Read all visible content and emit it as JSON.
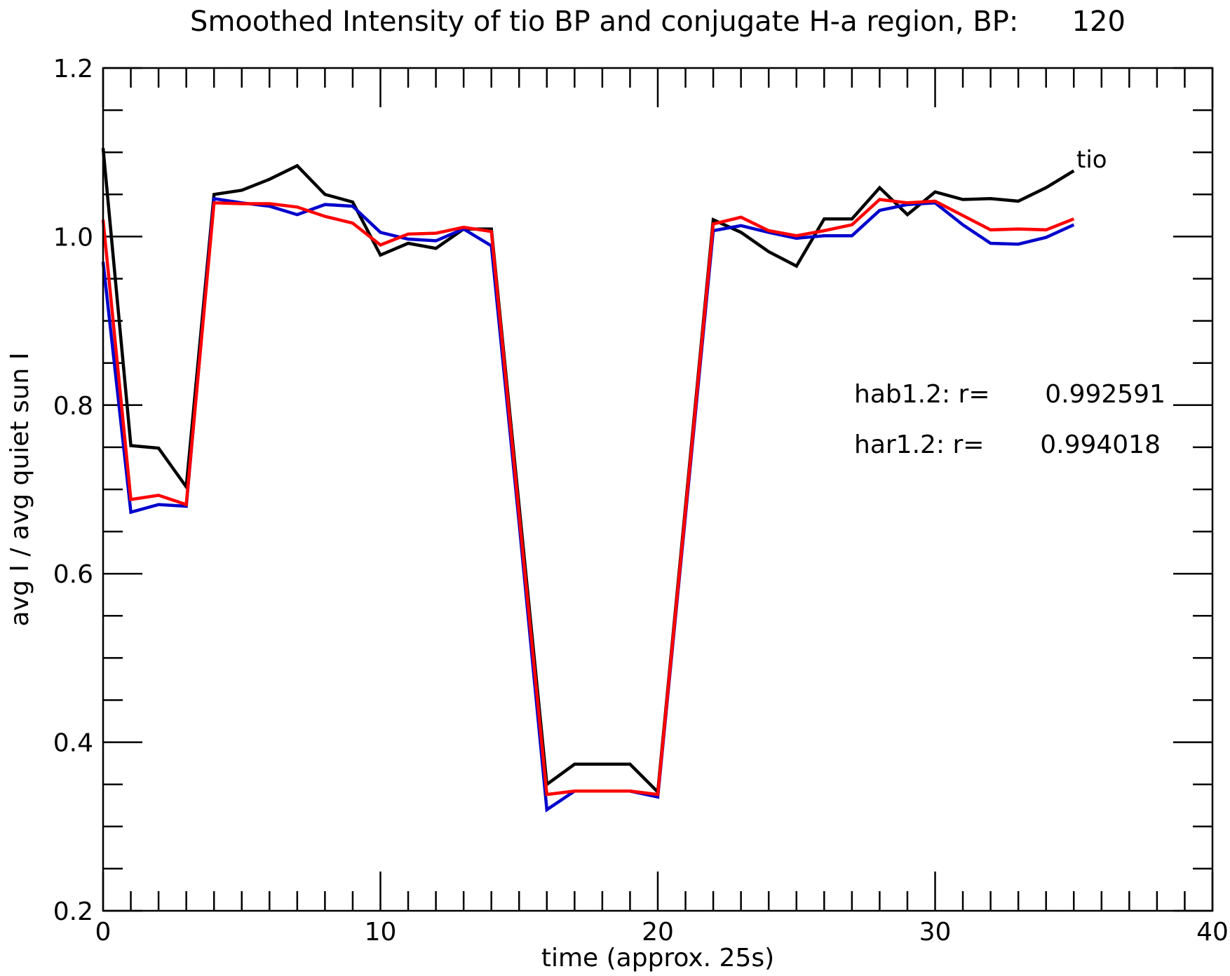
{
  "chart_data": {
    "type": "line",
    "title": "Smoothed Intensity of tio BP and conjugate H-a region, BP:      120",
    "xlabel": "time (approx. 25s)",
    "ylabel": "avg I / avg quiet sun I",
    "xlim": [
      0,
      40
    ],
    "ylim": [
      0.2,
      1.2
    ],
    "x_ticks": [
      0,
      10,
      20,
      30,
      40
    ],
    "y_ticks": [
      0.2,
      0.4,
      0.6,
      0.8,
      1.0,
      1.2
    ],
    "x_tick_labels": [
      "0",
      "10",
      "20",
      "30",
      "40"
    ],
    "y_tick_labels": [
      "0.2",
      "0.4",
      "0.6",
      "0.8",
      "1.0",
      "1.2"
    ],
    "x_minor_step": 1,
    "y_minor_step": 0.05,
    "grid": false,
    "series": [
      {
        "name": "tio",
        "color": "#000000",
        "x": [
          0,
          1,
          2,
          3,
          4,
          5,
          6,
          7,
          8,
          9,
          10,
          11,
          12,
          13,
          14,
          15,
          16,
          17,
          18,
          19,
          20,
          21,
          22,
          23,
          24,
          25,
          26,
          27,
          28,
          29,
          30,
          31,
          32,
          33,
          34,
          35
        ],
        "values": [
          1.105,
          0.752,
          0.749,
          0.703,
          1.05,
          1.055,
          1.068,
          1.084,
          1.05,
          1.041,
          0.978,
          0.992,
          0.986,
          1.009,
          1.009,
          0.68,
          0.35,
          0.374,
          0.374,
          0.374,
          0.341,
          0.68,
          1.02,
          1.005,
          0.982,
          0.965,
          1.021,
          1.021,
          1.058,
          1.026,
          1.053,
          1.044,
          1.045,
          1.042,
          1.058,
          1.078
        ]
      },
      {
        "name": "",
        "color": "#0000cc",
        "x": [
          0,
          1,
          2,
          3,
          4,
          5,
          6,
          7,
          8,
          9,
          10,
          11,
          12,
          13,
          14,
          15,
          16,
          17,
          18,
          19,
          20,
          21,
          22,
          23,
          24,
          25,
          26,
          27,
          28,
          29,
          30,
          31,
          32,
          33,
          34,
          35
        ],
        "values": [
          0.97,
          0.673,
          0.682,
          0.68,
          1.045,
          1.04,
          1.036,
          1.026,
          1.038,
          1.036,
          1.005,
          0.997,
          0.995,
          1.009,
          0.989,
          0.66,
          0.32,
          0.342,
          0.342,
          0.342,
          0.335,
          0.67,
          1.007,
          1.013,
          1.005,
          0.998,
          1.001,
          1.001,
          1.031,
          1.038,
          1.04,
          1.014,
          0.992,
          0.991,
          0.999,
          1.014
        ]
      },
      {
        "name": "",
        "color": "#ff0000",
        "x": [
          0,
          1,
          2,
          3,
          4,
          5,
          6,
          7,
          8,
          9,
          10,
          11,
          12,
          13,
          14,
          15,
          16,
          17,
          18,
          19,
          20,
          21,
          22,
          23,
          24,
          25,
          26,
          27,
          28,
          29,
          30,
          31,
          32,
          33,
          34,
          35
        ],
        "values": [
          1.02,
          0.688,
          0.693,
          0.682,
          1.04,
          1.039,
          1.039,
          1.035,
          1.024,
          1.016,
          0.99,
          1.003,
          1.004,
          1.011,
          1.006,
          0.67,
          0.338,
          0.342,
          0.342,
          0.342,
          0.338,
          0.675,
          1.015,
          1.023,
          1.007,
          1.001,
          1.007,
          1.014,
          1.044,
          1.04,
          1.042,
          1.025,
          1.008,
          1.009,
          1.008,
          1.021
        ]
      }
    ],
    "annotations": [
      {
        "id": "hab",
        "label": "hab1.2: r=",
        "value": "0.992591"
      },
      {
        "id": "har",
        "label": "har1.2: r=",
        "value": "0.994018"
      }
    ]
  }
}
